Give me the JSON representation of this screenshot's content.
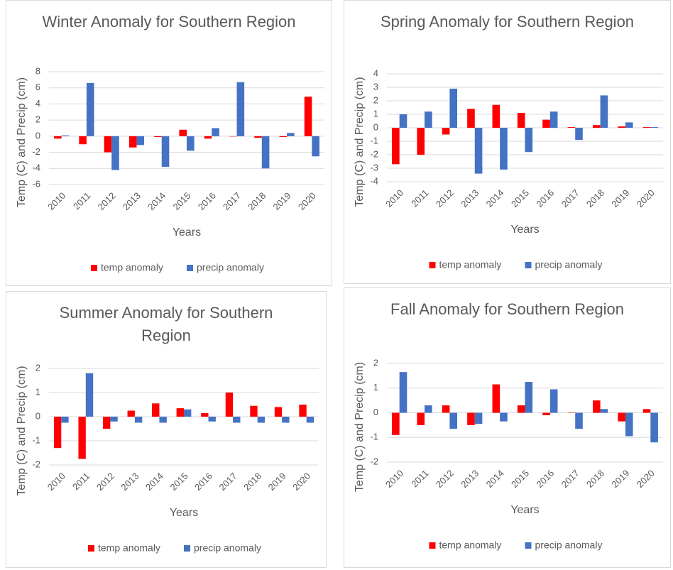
{
  "chart_data": [
    {
      "type": "bar",
      "title": "Winter Anomaly for Southern Region",
      "x_label": "Years",
      "y_label": "Temp (C) and Precip (cm)",
      "categories": [
        "2010",
        "2011",
        "2012",
        "2013",
        "2014",
        "2015",
        "2016",
        "2017",
        "2018",
        "2019",
        "2020"
      ],
      "series": [
        {
          "name": "temp anomaly",
          "color": "#ff0000",
          "values": [
            -0.3,
            -1.0,
            -2.0,
            -1.4,
            -0.1,
            0.8,
            -0.3,
            0,
            -0.2,
            -0.1,
            4.9
          ]
        },
        {
          "name": "precip anomaly",
          "color": "#4472c4",
          "values": [
            0.1,
            6.6,
            -4.2,
            -1.1,
            -3.8,
            -1.8,
            1.0,
            6.7,
            -4.0,
            0.4,
            -2.5
          ]
        }
      ],
      "ylim": [
        -6,
        8
      ],
      "yticks": [
        -6,
        -4,
        -2,
        0,
        2,
        4,
        6,
        8
      ],
      "grid": true,
      "legend": "bottom"
    },
    {
      "type": "bar",
      "title": "Spring Anomaly for Southern Region",
      "x_label": "Years",
      "y_label": "Temp (C) and Precip (cm)",
      "categories": [
        "2010",
        "2011",
        "2012",
        "2013",
        "2014",
        "2015",
        "2016",
        "2017",
        "2018",
        "2019",
        "2020"
      ],
      "series": [
        {
          "name": "temp anomaly",
          "color": "#ff0000",
          "values": [
            -2.7,
            -2.0,
            -0.5,
            1.4,
            1.7,
            1.1,
            0.6,
            0.05,
            0.2,
            0.1,
            0.05
          ]
        },
        {
          "name": "precip anomaly",
          "color": "#4472c4",
          "values": [
            1.0,
            1.2,
            2.9,
            -3.4,
            -3.1,
            -1.8,
            1.2,
            -0.9,
            2.4,
            0.4,
            0.05
          ]
        }
      ],
      "ylim": [
        -4,
        4
      ],
      "yticks": [
        -4,
        -3,
        -2,
        -1,
        0,
        1,
        2,
        3,
        4
      ],
      "grid": true,
      "legend": "bottom"
    },
    {
      "type": "bar",
      "title": "Summer Anomaly for Southern Region",
      "x_label": "Years",
      "y_label": "Temp (C) and Precip (cm)",
      "categories": [
        "2010",
        "2011",
        "2012",
        "2013",
        "2014",
        "2015",
        "2016",
        "2017",
        "2018",
        "2019",
        "2020"
      ],
      "series": [
        {
          "name": "temp anomaly",
          "color": "#ff0000",
          "values": [
            -1.3,
            -1.75,
            -0.5,
            0.25,
            0.55,
            0.35,
            0.15,
            1.0,
            0.45,
            0.4,
            0.5
          ]
        },
        {
          "name": "precip anomaly",
          "color": "#4472c4",
          "values": [
            -0.25,
            1.8,
            -0.2,
            -0.25,
            -0.25,
            0.3,
            -0.2,
            -0.25,
            -0.25,
            -0.25,
            -0.25
          ]
        }
      ],
      "ylim": [
        -2,
        2
      ],
      "yticks": [
        -2,
        -1,
        0,
        1,
        2
      ],
      "grid": true,
      "legend": "bottom"
    },
    {
      "type": "bar",
      "title": "Fall Anomaly for Southern Region",
      "x_label": "Years",
      "y_label": "Temp (C) and Precip (cm)",
      "categories": [
        "2010",
        "2011",
        "2012",
        "2013",
        "2014",
        "2015",
        "2016",
        "2017",
        "2018",
        "2019",
        "2020"
      ],
      "series": [
        {
          "name": "temp anomaly",
          "color": "#ff0000",
          "values": [
            -0.9,
            -0.5,
            0.3,
            -0.5,
            1.15,
            0.3,
            -0.1,
            0,
            0.5,
            -0.35,
            0.15
          ]
        },
        {
          "name": "precip anomaly",
          "color": "#4472c4",
          "values": [
            1.65,
            0.3,
            -0.65,
            -0.45,
            -0.35,
            1.25,
            0.95,
            -0.65,
            0.15,
            -0.95,
            -1.2
          ]
        }
      ],
      "ylim": [
        -2,
        2
      ],
      "yticks": [
        -2,
        -1,
        0,
        1,
        2
      ],
      "grid": true,
      "legend": "bottom"
    }
  ]
}
